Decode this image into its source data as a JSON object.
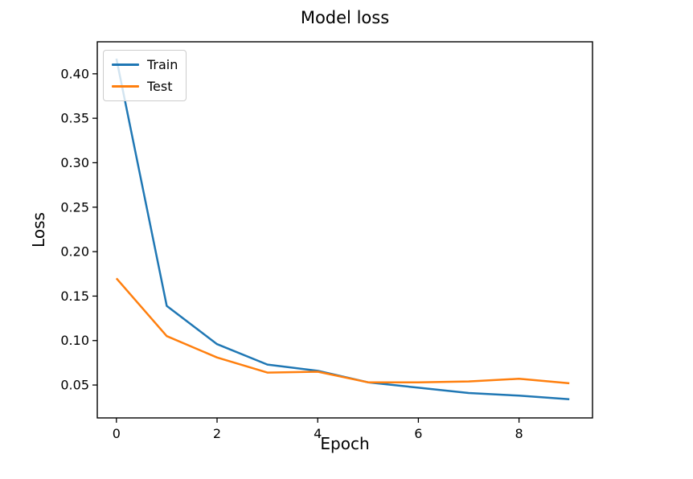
{
  "figure": {
    "background": "#ffffff"
  },
  "chart_data": {
    "type": "line",
    "title": "Model loss",
    "xlabel": "Epoch",
    "ylabel": "Loss",
    "x": [
      0,
      1,
      2,
      3,
      4,
      5,
      6,
      7,
      8,
      9
    ],
    "series": [
      {
        "name": "Train",
        "color": "#1f77b4",
        "values": [
          0.417,
          0.139,
          0.096,
          0.073,
          0.066,
          0.053,
          0.047,
          0.041,
          0.038,
          0.034
        ]
      },
      {
        "name": "Test",
        "color": "#ff7f0e",
        "values": [
          0.17,
          0.105,
          0.081,
          0.064,
          0.065,
          0.053,
          0.053,
          0.054,
          0.057,
          0.052
        ]
      }
    ],
    "xlim": [
      -0.38,
      9.46
    ],
    "ylim": [
      0.013,
      0.436
    ],
    "xticks": {
      "values": [
        0,
        2,
        4,
        6,
        8
      ],
      "labels": [
        "0",
        "2",
        "4",
        "6",
        "8"
      ]
    },
    "yticks": {
      "values": [
        0.05,
        0.1,
        0.15,
        0.2,
        0.25,
        0.3,
        0.35,
        0.4
      ],
      "labels": [
        "0.05",
        "0.10",
        "0.15",
        "0.20",
        "0.25",
        "0.30",
        "0.35",
        "0.40"
      ]
    },
    "grid": false,
    "legend": {
      "position": "upper-left",
      "entries": [
        "Train",
        "Test"
      ]
    },
    "axis_color": "#000000",
    "text_color": "#000000"
  }
}
